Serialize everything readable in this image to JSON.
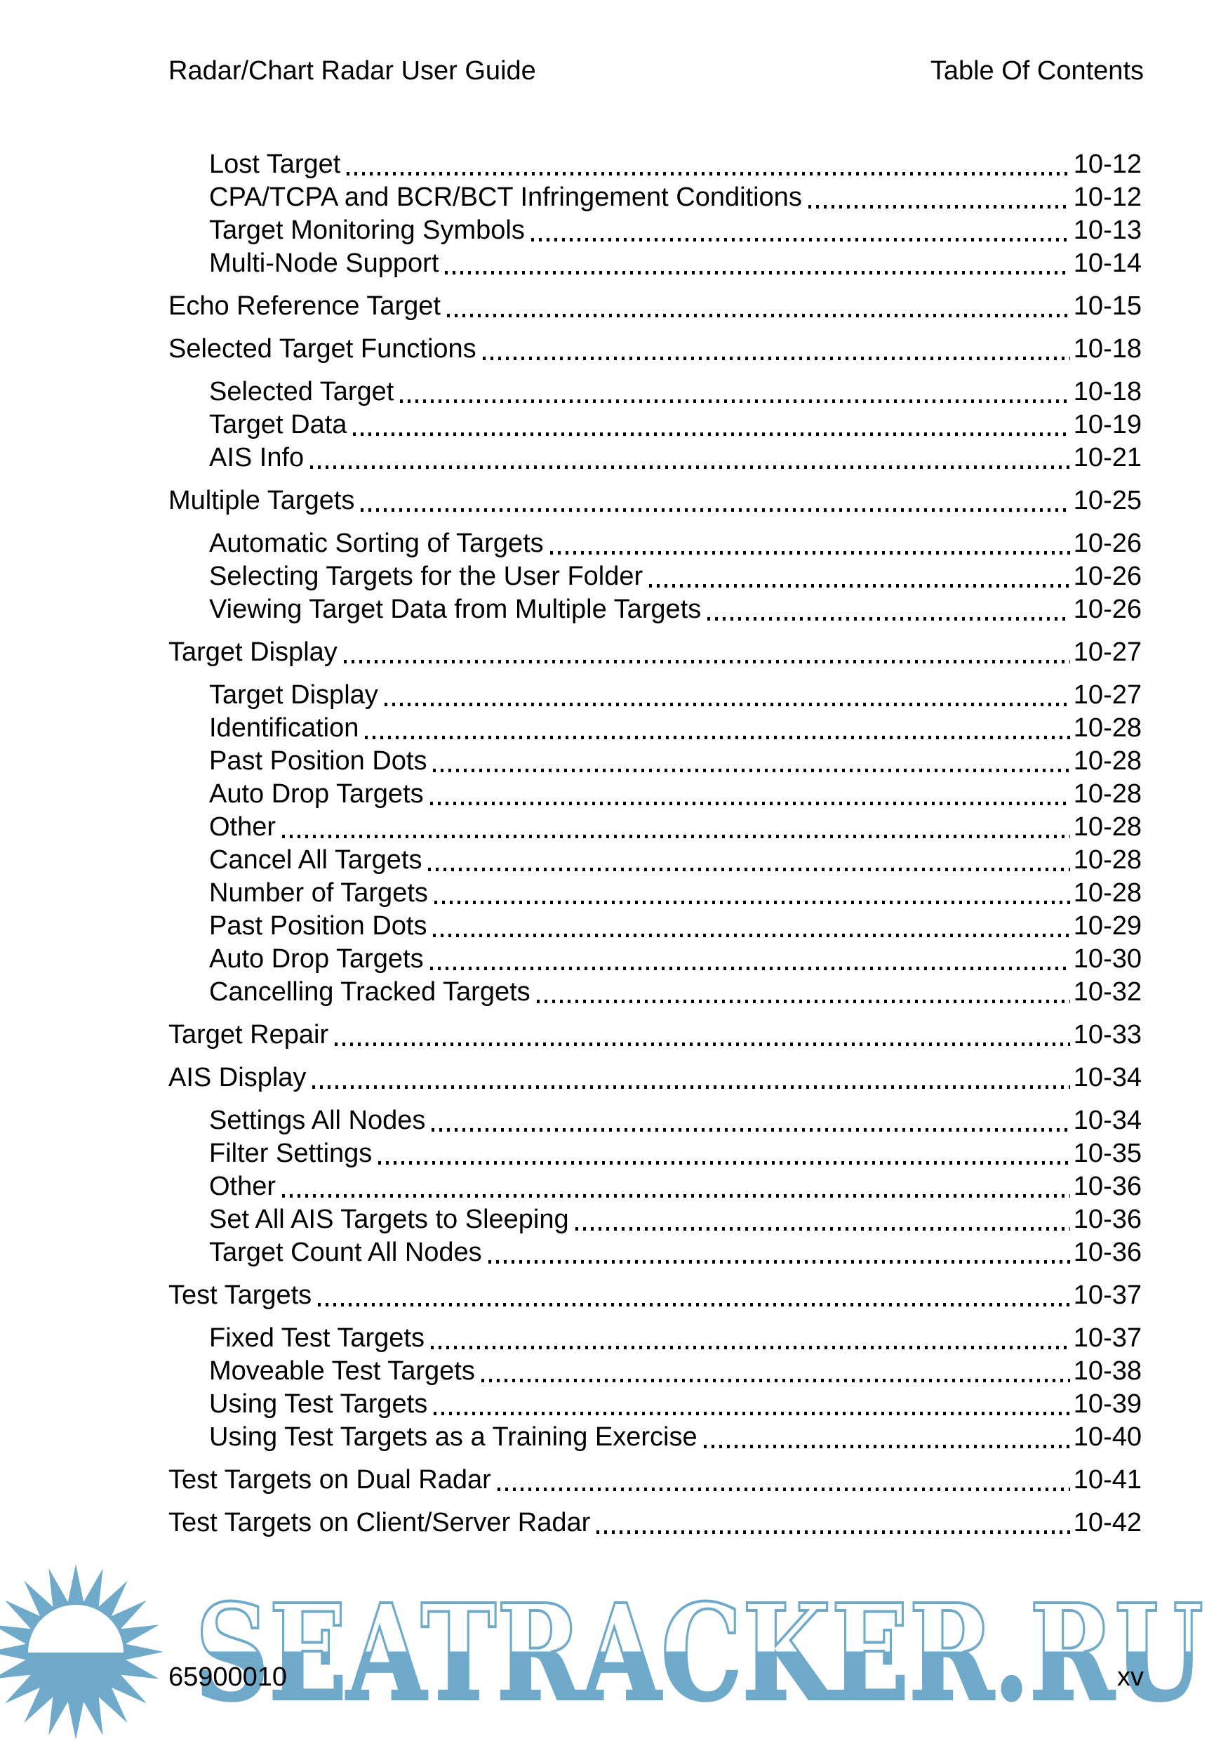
{
  "header": {
    "left": "Radar/Chart Radar User Guide",
    "right": "Table Of Contents"
  },
  "toc": {
    "entries": [
      {
        "label": "Lost Target",
        "page": "10-12",
        "level": 2
      },
      {
        "label": "CPA/TCPA and BCR/BCT Infringement Conditions",
        "page": "10-12",
        "level": 2
      },
      {
        "label": "Target Monitoring Symbols",
        "page": "10-13",
        "level": 2
      },
      {
        "label": "Multi-Node Support",
        "page": "10-14",
        "level": 2
      },
      {
        "label": "Echo Reference Target",
        "page": "10-15",
        "level": 1
      },
      {
        "label": "Selected Target Functions",
        "page": "10-18",
        "level": 1
      },
      {
        "label": "Selected Target",
        "page": "10-18",
        "level": 2
      },
      {
        "label": "Target Data",
        "page": "10-19",
        "level": 2
      },
      {
        "label": "AIS Info",
        "page": "10-21",
        "level": 2
      },
      {
        "label": "Multiple Targets",
        "page": "10-25",
        "level": 1
      },
      {
        "label": "Automatic Sorting of Targets",
        "page": "10-26",
        "level": 2
      },
      {
        "label": "Selecting Targets for the User Folder",
        "page": "10-26",
        "level": 2
      },
      {
        "label": "Viewing Target Data from Multiple Targets",
        "page": "10-26",
        "level": 2
      },
      {
        "label": "Target Display",
        "page": "10-27",
        "level": 1
      },
      {
        "label": "Target Display",
        "page": "10-27",
        "level": 2
      },
      {
        "label": "Identification",
        "page": "10-28",
        "level": 2
      },
      {
        "label": "Past Position Dots",
        "page": "10-28",
        "level": 2
      },
      {
        "label": "Auto Drop Targets",
        "page": "10-28",
        "level": 2
      },
      {
        "label": "Other",
        "page": "10-28",
        "level": 2
      },
      {
        "label": "Cancel All Targets",
        "page": "10-28",
        "level": 2
      },
      {
        "label": "Number of Targets",
        "page": "10-28",
        "level": 2
      },
      {
        "label": "Past Position Dots",
        "page": "10-29",
        "level": 2
      },
      {
        "label": "Auto Drop Targets",
        "page": "10-30",
        "level": 2
      },
      {
        "label": "Cancelling Tracked Targets",
        "page": "10-32",
        "level": 2
      },
      {
        "label": "Target Repair",
        "page": "10-33",
        "level": 1
      },
      {
        "label": "AIS Display",
        "page": "10-34",
        "level": 1
      },
      {
        "label": "Settings All Nodes",
        "page": "10-34",
        "level": 2
      },
      {
        "label": "Filter Settings",
        "page": "10-35",
        "level": 2
      },
      {
        "label": "Other",
        "page": "10-36",
        "level": 2
      },
      {
        "label": "Set All AIS Targets to Sleeping",
        "page": "10-36",
        "level": 2
      },
      {
        "label": "Target Count All Nodes",
        "page": "10-36",
        "level": 2
      },
      {
        "label": "Test Targets",
        "page": "10-37",
        "level": 1
      },
      {
        "label": "Fixed Test Targets",
        "page": "10-37",
        "level": 2
      },
      {
        "label": "Moveable Test Targets",
        "page": "10-38",
        "level": 2
      },
      {
        "label": "Using Test Targets",
        "page": "10-39",
        "level": 2
      },
      {
        "label": "Using Test Targets as a Training Exercise",
        "page": "10-40",
        "level": 2
      },
      {
        "label": "Test Targets on Dual Radar",
        "page": "10-41",
        "level": 1
      },
      {
        "label": "Test Targets on Client/Server Radar",
        "page": "10-42",
        "level": 1
      }
    ]
  },
  "footer": {
    "doc_number": "65900010",
    "page_number": "xv"
  },
  "watermark": {
    "text": "SEATRACKER.RU",
    "color": "#6FAACB",
    "logo": "sun-icon"
  }
}
